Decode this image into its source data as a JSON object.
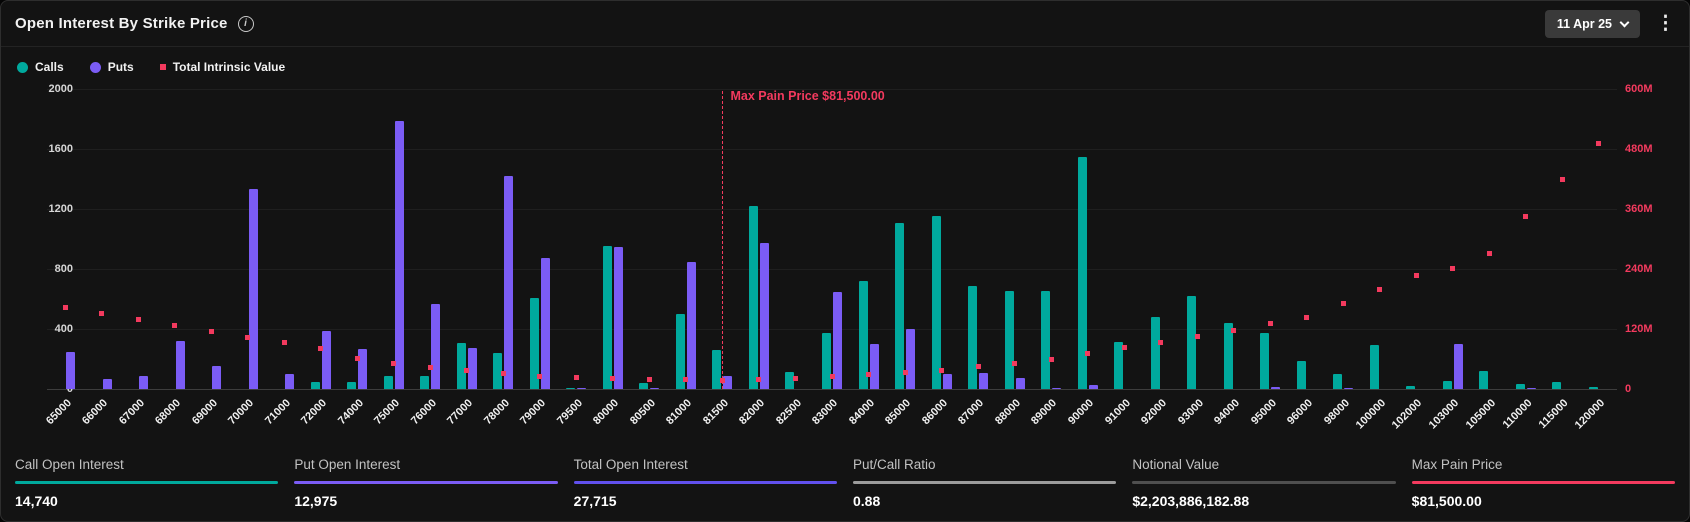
{
  "header": {
    "title": "Open Interest By Strike Price",
    "date_selector": "11 Apr 25"
  },
  "icons": {
    "info": "i",
    "kebab": "⋮",
    "chevron_down": "v"
  },
  "colors": {
    "calls": "#00a99d",
    "puts": "#7b5cf5",
    "intrinsic": "#f33a5e",
    "panel_bg": "#131313",
    "gridline": "#1f1f1f",
    "date_pill_bg": "#3a3a3a"
  },
  "legend": [
    {
      "label": "Calls",
      "color": "#00a99d",
      "shape": "circle"
    },
    {
      "label": "Puts",
      "color": "#7b5cf5",
      "shape": "circle"
    },
    {
      "label": "Total Intrinsic Value",
      "color": "#f33a5e",
      "shape": "square"
    }
  ],
  "chart_data": {
    "type": "bar",
    "title": "Open Interest By Strike Price",
    "categories": [
      "65000",
      "66000",
      "67000",
      "68000",
      "69000",
      "70000",
      "71000",
      "72000",
      "74000",
      "75000",
      "76000",
      "77000",
      "78000",
      "79000",
      "79500",
      "80000",
      "80500",
      "81000",
      "81500",
      "82000",
      "82500",
      "83000",
      "84000",
      "85000",
      "86000",
      "87000",
      "88000",
      "89000",
      "90000",
      "91000",
      "92000",
      "93000",
      "94000",
      "95000",
      "96000",
      "98000",
      "100000",
      "102000",
      "103000",
      "105000",
      "110000",
      "115000",
      "120000"
    ],
    "series": [
      {
        "name": "Calls",
        "type": "bar",
        "axis": "left",
        "color": "#00a99d",
        "values": [
          0,
          0,
          0,
          0,
          0,
          0,
          0,
          47,
          45,
          90,
          90,
          307,
          240,
          607,
          8,
          955,
          40,
          497,
          262,
          1220,
          115,
          374,
          718,
          1105,
          1153,
          685,
          655,
          655,
          1550,
          314,
          478,
          621,
          437,
          375,
          188,
          103,
          295,
          20,
          55,
          120,
          35,
          50,
          12
        ]
      },
      {
        "name": "Puts",
        "type": "bar",
        "axis": "left",
        "color": "#7b5cf5",
        "values": [
          250,
          70,
          85,
          320,
          155,
          1335,
          100,
          390,
          270,
          1790,
          570,
          275,
          1420,
          875,
          10,
          950,
          8,
          845,
          90,
          975,
          0,
          645,
          297,
          400,
          100,
          110,
          75,
          5,
          25,
          0,
          0,
          0,
          0,
          12,
          0,
          10,
          0,
          0,
          300,
          0,
          8,
          0,
          0
        ]
      },
      {
        "name": "Total Intrinsic Value",
        "type": "scatter",
        "axis": "right",
        "color": "#f33a5e",
        "values_millions": [
          164,
          152,
          139,
          127,
          115,
          103,
          94,
          81,
          62,
          52,
          43,
          37,
          31,
          25,
          23,
          22,
          20,
          19,
          18,
          20,
          22,
          25,
          29,
          33,
          38,
          45,
          52,
          60,
          72,
          83,
          94,
          105,
          117,
          131,
          143,
          172,
          199,
          227,
          242,
          271,
          345,
          419,
          492
        ]
      }
    ],
    "left_axis": {
      "max": 2000,
      "ticks": [
        "2000",
        "1600",
        "1200",
        "800",
        "400",
        "0"
      ]
    },
    "right_axis": {
      "max_millions": 600,
      "ticks": [
        "600M",
        "480M",
        "360M",
        "240M",
        "120M",
        "0"
      ]
    },
    "max_pain": {
      "category": "81500",
      "category_index": 18,
      "label": "Max Pain Price $81,500.00"
    },
    "grid": true,
    "legend_position": "top-left"
  },
  "stats": [
    {
      "label": "Call Open Interest",
      "value": "14,740",
      "color": "#00a99d"
    },
    {
      "label": "Put Open Interest",
      "value": "12,975",
      "color": "#7b5cf5"
    },
    {
      "label": "Total Open Interest",
      "value": "27,715",
      "color": "#6150ee"
    },
    {
      "label": "Put/Call Ratio",
      "value": "0.88",
      "color": "#9c9c9c"
    },
    {
      "label": "Notional Value",
      "value": "$2,203,886,182.88",
      "color": "#4f4f4f"
    },
    {
      "label": "Max Pain Price",
      "value": "$81,500.00",
      "color": "#f33a5e"
    }
  ]
}
